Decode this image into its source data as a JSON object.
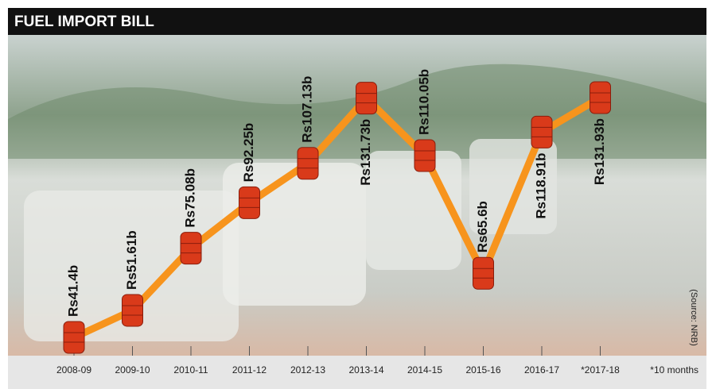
{
  "chart_data": {
    "type": "line",
    "title": "FUEL IMPORT BILL",
    "categories": [
      "2008-09",
      "2009-10",
      "2010-11",
      "2011-12",
      "2012-13",
      "2013-14",
      "2014-15",
      "2015-16",
      "2016-17",
      "*2017-18"
    ],
    "values": [
      41.4,
      51.61,
      75.08,
      92.25,
      107.13,
      131.73,
      110.05,
      65.6,
      118.91,
      131.93
    ],
    "value_labels": [
      "Rs41.4b",
      "Rs51.61b",
      "Rs75.08b",
      "Rs92.25b",
      "Rs107.13b",
      "Rs131.73b",
      "Rs110.05b",
      "Rs65.6b",
      "Rs118.91b",
      "Rs131.93b"
    ],
    "color": "#f7941d",
    "marker_color": "#d93a1a",
    "footnote": "*10 months",
    "source": "(Source: NRB)"
  }
}
